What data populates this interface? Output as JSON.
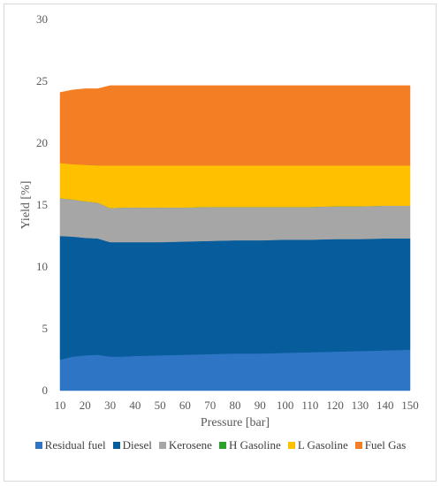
{
  "chart_data": {
    "type": "area",
    "stacked": true,
    "title": "",
    "xlabel": "Pressure [bar]",
    "ylabel": "Yield [%]",
    "xlim": [
      10,
      150
    ],
    "ylim": [
      0,
      30
    ],
    "xticks": [
      10,
      20,
      30,
      40,
      50,
      60,
      70,
      80,
      90,
      100,
      110,
      120,
      130,
      140,
      150
    ],
    "yticks": [
      0,
      5,
      10,
      15,
      20,
      25,
      30
    ],
    "grid": false,
    "legend_position": "bottom",
    "x": [
      10,
      15,
      20,
      25,
      30,
      35,
      40,
      50,
      60,
      70,
      80,
      90,
      100,
      110,
      120,
      130,
      140,
      150
    ],
    "series": [
      {
        "name": "Residual fuel",
        "color": "#2E75C6",
        "values": [
          2.5,
          2.75,
          2.85,
          2.9,
          2.75,
          2.75,
          2.8,
          2.85,
          2.9,
          2.95,
          3.0,
          3.0,
          3.05,
          3.1,
          3.15,
          3.2,
          3.25,
          3.3
        ]
      },
      {
        "name": "Diesel",
        "color": "#075D9B",
        "values": [
          10.0,
          9.7,
          9.5,
          9.4,
          9.25,
          9.25,
          9.2,
          9.15,
          9.15,
          9.15,
          9.15,
          9.15,
          9.15,
          9.1,
          9.1,
          9.05,
          9.05,
          9.0
        ]
      },
      {
        "name": "Kerosene",
        "color": "#A6A6A6",
        "values": [
          3.05,
          3.0,
          2.95,
          2.9,
          2.75,
          2.8,
          2.8,
          2.8,
          2.75,
          2.75,
          2.7,
          2.7,
          2.65,
          2.65,
          2.65,
          2.65,
          2.65,
          2.65
        ]
      },
      {
        "name": "H Gasoline",
        "color": "#2CA02C",
        "values": [
          0,
          0,
          0,
          0,
          0,
          0,
          0,
          0,
          0,
          0,
          0,
          0,
          0,
          0,
          0,
          0,
          0,
          0
        ]
      },
      {
        "name": "L Gasoline",
        "color": "#FFC000",
        "values": [
          2.85,
          2.85,
          2.95,
          3.0,
          3.45,
          3.4,
          3.4,
          3.4,
          3.4,
          3.35,
          3.35,
          3.35,
          3.35,
          3.35,
          3.3,
          3.3,
          3.25,
          3.25
        ]
      },
      {
        "name": "Fuel Gas",
        "color": "#F47E24",
        "values": [
          5.7,
          6.0,
          6.15,
          6.2,
          6.45,
          6.45,
          6.45,
          6.45,
          6.45,
          6.45,
          6.45,
          6.45,
          6.45,
          6.45,
          6.45,
          6.45,
          6.45,
          6.45
        ]
      }
    ]
  }
}
